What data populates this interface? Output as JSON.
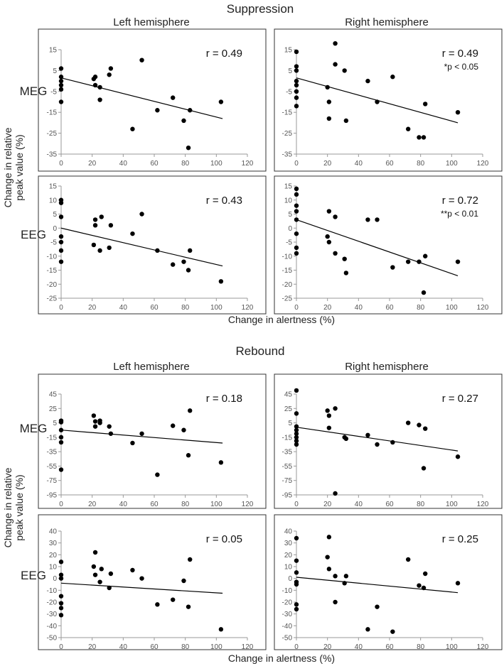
{
  "sections": [
    {
      "title": "Suppression",
      "xlabel": "Change in alertness (%)",
      "ylabel_line1": "Change in relative",
      "ylabel_line2": "peak value (%)"
    },
    {
      "title": "Rebound",
      "xlabel": "Change in alertness (%)",
      "ylabel_line1": "Change in relative",
      "ylabel_line2": "peak value (%)"
    }
  ],
  "column_titles": [
    "Left hemisphere",
    "Right hemisphere"
  ],
  "row_labels": [
    "MEG",
    "EEG",
    "MEG",
    "EEG"
  ],
  "chart_data": [
    {
      "type": "scatter",
      "section": "Suppression",
      "modality": "MEG",
      "hemisphere": "Left hemisphere",
      "xlabel": "Change in alertness (%)",
      "ylabel": "Change in relative peak value (%)",
      "xlim": [
        0,
        120
      ],
      "ylim": [
        -35,
        15
      ],
      "xticks": [
        0,
        20,
        40,
        60,
        80,
        100,
        120
      ],
      "yticks": [
        15,
        5,
        -5,
        -15,
        -25,
        -35
      ],
      "annotation": "r = 0.49",
      "significance": "",
      "points": [
        [
          0,
          6
        ],
        [
          0,
          2
        ],
        [
          0,
          0
        ],
        [
          0,
          -2
        ],
        [
          0,
          -4
        ],
        [
          0,
          -10
        ],
        [
          21,
          1
        ],
        [
          22,
          2
        ],
        [
          22,
          -2
        ],
        [
          25,
          -9
        ],
        [
          25,
          -3
        ],
        [
          31,
          3
        ],
        [
          32,
          6
        ],
        [
          46,
          -23
        ],
        [
          52,
          10
        ],
        [
          62,
          -14
        ],
        [
          72,
          -8
        ],
        [
          79,
          -19
        ],
        [
          82,
          -32
        ],
        [
          83,
          -14
        ],
        [
          103,
          -10
        ]
      ],
      "fit": [
        [
          0,
          1.5
        ],
        [
          104,
          -18
        ]
      ]
    },
    {
      "type": "scatter",
      "section": "Suppression",
      "modality": "MEG",
      "hemisphere": "Right hemisphere",
      "xlabel": "Change in alertness (%)",
      "ylabel": "Change in relative peak value (%)",
      "xlim": [
        0,
        120
      ],
      "ylim": [
        -35,
        15
      ],
      "xticks": [
        0,
        20,
        40,
        60,
        80,
        100,
        120
      ],
      "yticks": [
        15,
        5,
        -5,
        -15,
        -25,
        -35
      ],
      "annotation": "r = 0.49",
      "significance": "*p < 0.05",
      "points": [
        [
          0,
          14
        ],
        [
          0,
          7
        ],
        [
          0,
          5
        ],
        [
          0,
          0
        ],
        [
          0,
          -2
        ],
        [
          0,
          -5
        ],
        [
          0,
          -8
        ],
        [
          0,
          -12
        ],
        [
          20,
          -3
        ],
        [
          21,
          -10
        ],
        [
          21,
          -18
        ],
        [
          25,
          18
        ],
        [
          25,
          8
        ],
        [
          31,
          5
        ],
        [
          32,
          -19
        ],
        [
          46,
          0
        ],
        [
          52,
          -10
        ],
        [
          62,
          2
        ],
        [
          72,
          -23
        ],
        [
          79,
          -27
        ],
        [
          82,
          -27
        ],
        [
          83,
          -11
        ],
        [
          104,
          -15
        ]
      ],
      "fit": [
        [
          0,
          1.5
        ],
        [
          104,
          -20
        ]
      ]
    },
    {
      "type": "scatter",
      "section": "Suppression",
      "modality": "EEG",
      "hemisphere": "Left hemisphere",
      "xlabel": "Change in alertness (%)",
      "ylabel": "Change in relative peak value (%)",
      "xlim": [
        0,
        120
      ],
      "ylim": [
        -25,
        15
      ],
      "xticks": [
        0,
        20,
        40,
        60,
        80,
        100,
        120
      ],
      "yticks": [
        15,
        10,
        5,
        0,
        -5,
        -10,
        -15,
        -20,
        -25
      ],
      "annotation": "r = 0.43",
      "significance": "",
      "points": [
        [
          0,
          10
        ],
        [
          0,
          9
        ],
        [
          0,
          4
        ],
        [
          0,
          -3
        ],
        [
          0,
          -5
        ],
        [
          0,
          -8
        ],
        [
          0,
          -12
        ],
        [
          21,
          -6
        ],
        [
          22,
          1
        ],
        [
          22,
          3
        ],
        [
          25,
          -8
        ],
        [
          26,
          4
        ],
        [
          31,
          -7
        ],
        [
          32,
          1
        ],
        [
          46,
          -2
        ],
        [
          52,
          5
        ],
        [
          62,
          -8
        ],
        [
          72,
          -13
        ],
        [
          79,
          -12
        ],
        [
          82,
          -15
        ],
        [
          83,
          -8
        ],
        [
          103,
          -19
        ]
      ],
      "fit": [
        [
          0,
          0
        ],
        [
          104,
          -13.5
        ]
      ]
    },
    {
      "type": "scatter",
      "section": "Suppression",
      "modality": "EEG",
      "hemisphere": "Right hemisphere",
      "xlabel": "Change in alertness (%)",
      "ylabel": "Change in relative peak value (%)",
      "xlim": [
        0,
        120
      ],
      "ylim": [
        -25,
        15
      ],
      "xticks": [
        0,
        20,
        40,
        60,
        80,
        100,
        120
      ],
      "yticks": [
        15,
        10,
        5,
        0,
        -5,
        -10,
        -15,
        -20,
        -25
      ],
      "annotation": "r = 0.72",
      "significance": "**p < 0.01",
      "points": [
        [
          0,
          14
        ],
        [
          0,
          12
        ],
        [
          0,
          8
        ],
        [
          0,
          6
        ],
        [
          0,
          3
        ],
        [
          0,
          -2
        ],
        [
          0,
          -7
        ],
        [
          0,
          -9
        ],
        [
          20,
          -3
        ],
        [
          21,
          -5
        ],
        [
          21,
          6
        ],
        [
          25,
          -9
        ],
        [
          25,
          4
        ],
        [
          31,
          -11
        ],
        [
          32,
          -16
        ],
        [
          46,
          3
        ],
        [
          52,
          3
        ],
        [
          62,
          -14
        ],
        [
          72,
          -12
        ],
        [
          79,
          -12
        ],
        [
          82,
          -23
        ],
        [
          83,
          -10
        ],
        [
          104,
          -12
        ]
      ],
      "fit": [
        [
          0,
          3
        ],
        [
          104,
          -17
        ]
      ]
    },
    {
      "type": "scatter",
      "section": "Rebound",
      "modality": "MEG",
      "hemisphere": "Left hemisphere",
      "xlabel": "Change in alertness (%)",
      "ylabel": "Change in relative peak value (%)",
      "xlim": [
        0,
        120
      ],
      "ylim": [
        -95,
        45
      ],
      "xticks": [
        0,
        20,
        40,
        60,
        80,
        100,
        120
      ],
      "yticks": [
        45,
        25,
        5,
        -15,
        -35,
        -55,
        -75,
        -95
      ],
      "annotation": "r = 0.18",
      "significance": "",
      "points": [
        [
          0,
          8
        ],
        [
          0,
          6
        ],
        [
          0,
          -5
        ],
        [
          0,
          -15
        ],
        [
          0,
          -22
        ],
        [
          0,
          -60
        ],
        [
          21,
          15
        ],
        [
          22,
          7
        ],
        [
          22,
          0
        ],
        [
          25,
          8
        ],
        [
          25,
          5
        ],
        [
          31,
          0
        ],
        [
          32,
          -10
        ],
        [
          46,
          -23
        ],
        [
          52,
          -10
        ],
        [
          62,
          -67
        ],
        [
          72,
          1
        ],
        [
          79,
          -5
        ],
        [
          82,
          -40
        ],
        [
          83,
          22
        ],
        [
          103,
          -50
        ]
      ],
      "fit": [
        [
          0,
          -5
        ],
        [
          104,
          -23
        ]
      ]
    },
    {
      "type": "scatter",
      "section": "Rebound",
      "modality": "MEG",
      "hemisphere": "Right hemisphere",
      "xlabel": "Change in alertness (%)",
      "ylabel": "Change in relative peak value (%)",
      "xlim": [
        0,
        120
      ],
      "ylim": [
        -95,
        45
      ],
      "xticks": [
        0,
        20,
        40,
        60,
        80,
        100,
        120
      ],
      "yticks": [
        45,
        25,
        5,
        -15,
        -35,
        -55,
        -75,
        -95
      ],
      "annotation": "r = 0.27",
      "significance": "",
      "points": [
        [
          0,
          50
        ],
        [
          0,
          18
        ],
        [
          0,
          0
        ],
        [
          0,
          -5
        ],
        [
          0,
          -10
        ],
        [
          0,
          -15
        ],
        [
          0,
          -20
        ],
        [
          0,
          -25
        ],
        [
          20,
          22
        ],
        [
          21,
          15
        ],
        [
          21,
          -2
        ],
        [
          25,
          25
        ],
        [
          25,
          -93
        ],
        [
          31,
          -15
        ],
        [
          32,
          -17
        ],
        [
          46,
          -12
        ],
        [
          52,
          -25
        ],
        [
          62,
          -22
        ],
        [
          72,
          5
        ],
        [
          79,
          2
        ],
        [
          82,
          -58
        ],
        [
          83,
          -3
        ],
        [
          104,
          -42
        ]
      ],
      "fit": [
        [
          0,
          -1
        ],
        [
          104,
          -34
        ]
      ]
    },
    {
      "type": "scatter",
      "section": "Rebound",
      "modality": "EEG",
      "hemisphere": "Left hemisphere",
      "xlabel": "Change in alertness (%)",
      "ylabel": "Change in relative peak value (%)",
      "xlim": [
        0,
        120
      ],
      "ylim": [
        -50,
        40
      ],
      "xticks": [
        0,
        20,
        40,
        60,
        80,
        100,
        120
      ],
      "yticks": [
        40,
        30,
        20,
        10,
        0,
        -10,
        -20,
        -30,
        -40,
        -50
      ],
      "annotation": "r = 0.05",
      "significance": "",
      "points": [
        [
          0,
          14
        ],
        [
          0,
          3
        ],
        [
          0,
          0
        ],
        [
          0,
          -15
        ],
        [
          0,
          -21
        ],
        [
          0,
          -25
        ],
        [
          0,
          -31
        ],
        [
          21,
          10
        ],
        [
          22,
          22
        ],
        [
          22,
          3
        ],
        [
          25,
          -3
        ],
        [
          26,
          8
        ],
        [
          31,
          -8
        ],
        [
          32,
          4
        ],
        [
          46,
          7
        ],
        [
          52,
          0
        ],
        [
          62,
          -22
        ],
        [
          72,
          -18
        ],
        [
          79,
          -2
        ],
        [
          82,
          -24
        ],
        [
          83,
          16
        ],
        [
          103,
          -43
        ]
      ],
      "fit": [
        [
          0,
          -4
        ],
        [
          104,
          -12.5
        ]
      ]
    },
    {
      "type": "scatter",
      "section": "Rebound",
      "modality": "EEG",
      "hemisphere": "Right hemisphere",
      "xlabel": "Change in alertness (%)",
      "ylabel": "Change in relative peak value (%)",
      "xlim": [
        0,
        120
      ],
      "ylim": [
        -50,
        40
      ],
      "xticks": [
        0,
        20,
        40,
        60,
        80,
        100,
        120
      ],
      "yticks": [
        40,
        30,
        20,
        10,
        0,
        -10,
        -20,
        -30,
        -40,
        -50
      ],
      "annotation": "r = 0.25",
      "significance": "",
      "points": [
        [
          0,
          34
        ],
        [
          0,
          15
        ],
        [
          0,
          5
        ],
        [
          0,
          -3
        ],
        [
          0,
          -5
        ],
        [
          0,
          -22
        ],
        [
          0,
          -26
        ],
        [
          20,
          18
        ],
        [
          21,
          8
        ],
        [
          21,
          35
        ],
        [
          25,
          -20
        ],
        [
          25,
          2
        ],
        [
          31,
          -4
        ],
        [
          32,
          2
        ],
        [
          46,
          -43
        ],
        [
          52,
          -24
        ],
        [
          62,
          -45
        ],
        [
          72,
          16
        ],
        [
          79,
          -6
        ],
        [
          82,
          -8
        ],
        [
          83,
          4
        ],
        [
          104,
          -4
        ]
      ],
      "fit": [
        [
          0,
          1
        ],
        [
          104,
          -12
        ]
      ]
    }
  ]
}
